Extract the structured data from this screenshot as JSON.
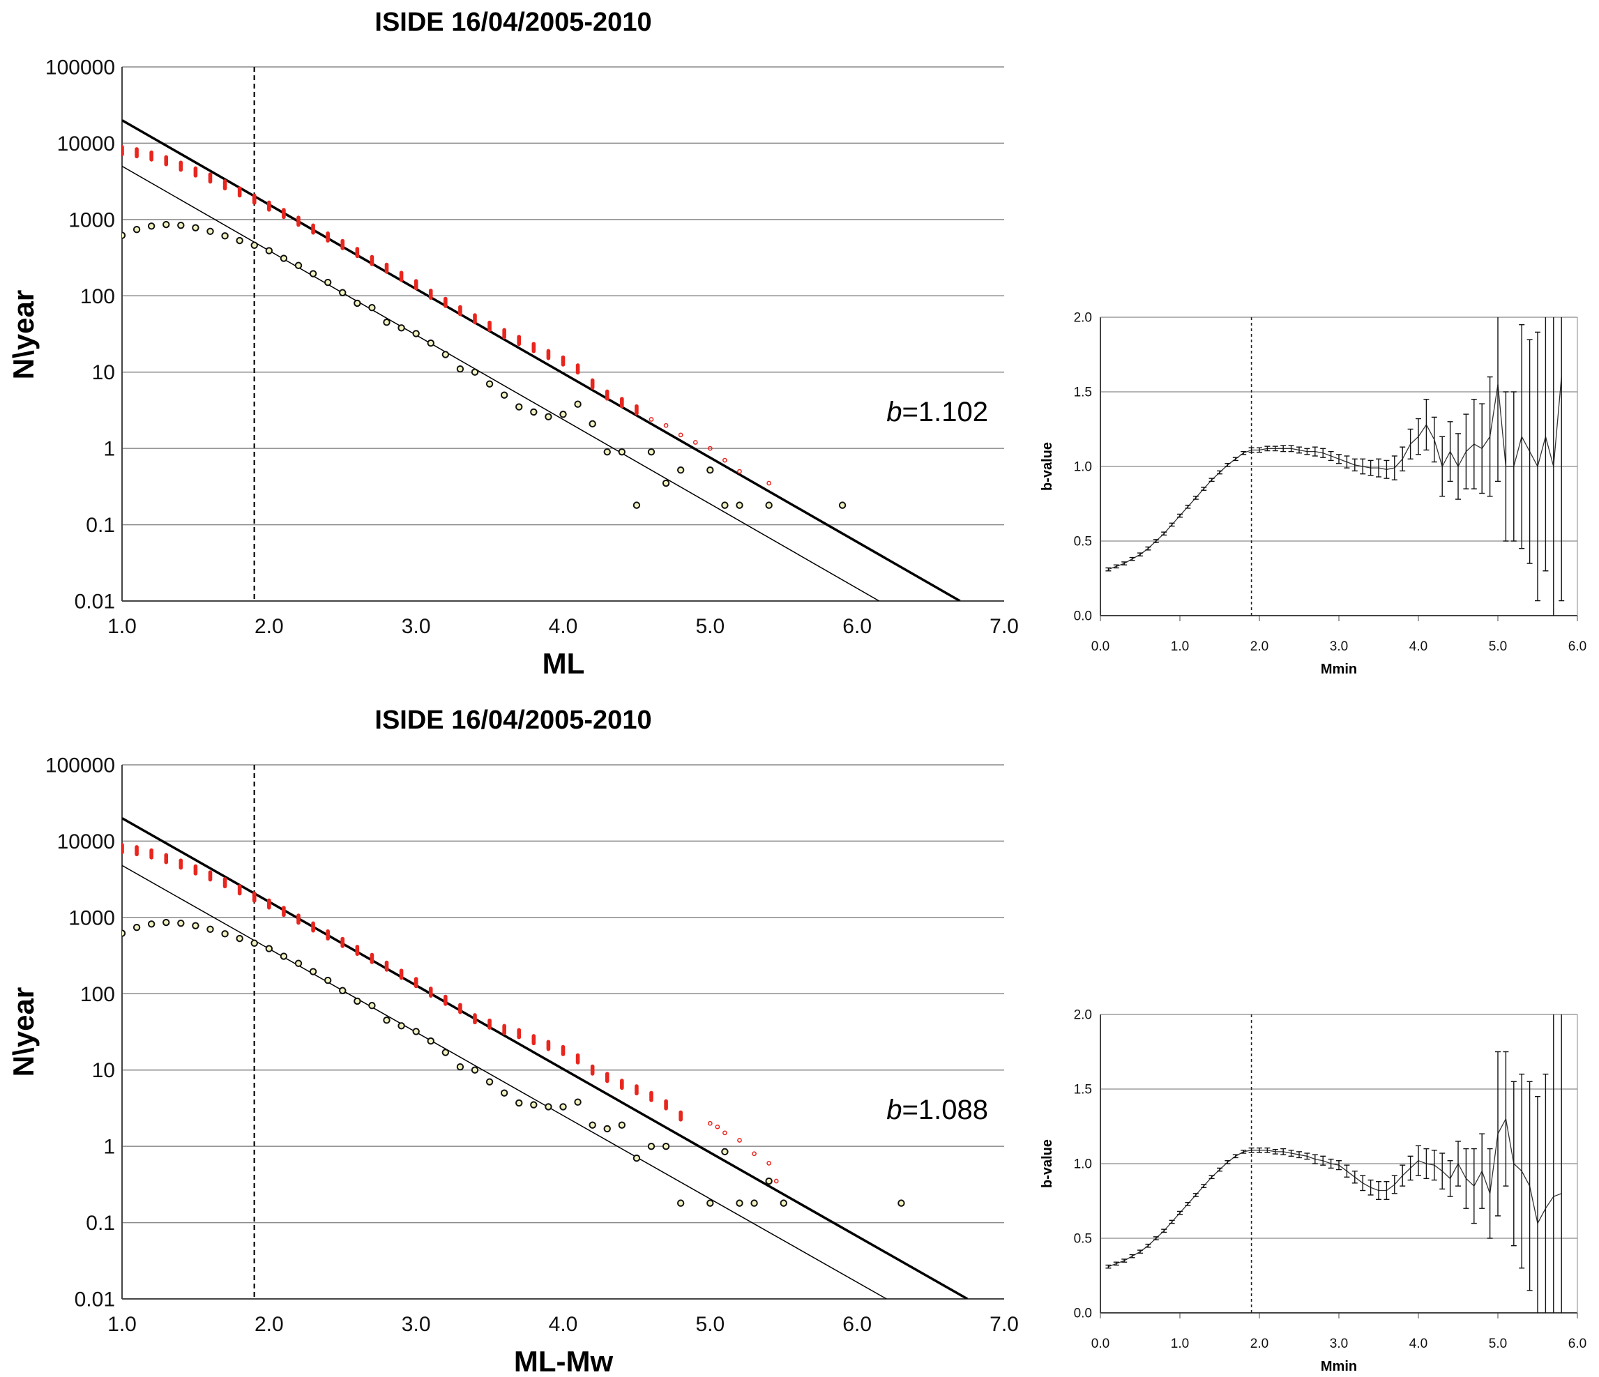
{
  "chart_data": [
    {
      "type": "scatter",
      "title": "ISIDE 16/04/2005-2010",
      "xlabel": "ML",
      "ylabel": "N\\year",
      "xlim": [
        1.0,
        7.0
      ],
      "ylim": [
        0.01,
        100000
      ],
      "yscale": "log",
      "grid": "horizontal",
      "x_ticks": [
        "1.0",
        "2.0",
        "3.0",
        "4.0",
        "5.0",
        "6.0",
        "7.0"
      ],
      "y_ticks": [
        "0.01",
        "0.1",
        "1",
        "10",
        "100",
        "1000",
        "10000",
        "100000"
      ],
      "mc_line_x": 1.9,
      "annotation": {
        "italic": "b",
        "text": "=1.102"
      },
      "series": [
        {
          "kind": "fit-line-cumulative",
          "x": [
            1.0,
            6.7
          ],
          "y": [
            20000,
            0.01
          ]
        },
        {
          "kind": "fit-line-incremental",
          "x": [
            1.0,
            6.15
          ],
          "y": [
            5000,
            0.01
          ]
        },
        {
          "kind": "cumulative-points",
          "color": "#e8261e",
          "x": [
            1.0,
            1.1,
            1.2,
            1.3,
            1.4,
            1.5,
            1.6,
            1.7,
            1.8,
            1.9,
            2.0,
            2.1,
            2.2,
            2.3,
            2.4,
            2.5,
            2.6,
            2.7,
            2.8,
            2.9,
            3.0,
            3.1,
            3.2,
            3.3,
            3.4,
            3.5,
            3.6,
            3.7,
            3.8,
            3.9,
            4.0,
            4.1,
            4.2,
            4.3,
            4.4,
            4.5,
            4.6,
            4.7,
            4.8,
            4.9,
            5.0,
            5.1,
            5.2,
            5.4
          ],
          "y": [
            8000,
            7500,
            6800,
            5900,
            5000,
            4200,
            3500,
            2850,
            2300,
            1850,
            1500,
            1200,
            950,
            750,
            590,
            470,
            370,
            290,
            230,
            180,
            140,
            105,
            82,
            64,
            50,
            40,
            32,
            26,
            21,
            17,
            14,
            11,
            7,
            5,
            4,
            3.2,
            2.4,
            2.0,
            1.5,
            1.2,
            1.0,
            0.7,
            0.5,
            0.35
          ]
        },
        {
          "kind": "incremental-points",
          "color": "#f3f3c0",
          "x": [
            1.0,
            1.1,
            1.2,
            1.3,
            1.4,
            1.5,
            1.6,
            1.7,
            1.8,
            1.9,
            2.0,
            2.1,
            2.2,
            2.3,
            2.4,
            2.5,
            2.6,
            2.7,
            2.8,
            2.9,
            3.0,
            3.1,
            3.2,
            3.3,
            3.4,
            3.5,
            3.6,
            3.7,
            3.8,
            3.9,
            4.0,
            4.1,
            4.2,
            4.3,
            4.4,
            4.5,
            4.6,
            4.7,
            4.8,
            5.0,
            5.1,
            5.2,
            5.4,
            5.9
          ],
          "y": [
            620,
            740,
            820,
            860,
            840,
            780,
            700,
            610,
            530,
            460,
            390,
            310,
            250,
            195,
            150,
            110,
            80,
            70,
            45,
            38,
            32,
            24,
            17,
            11,
            10,
            7,
            5,
            3.5,
            3,
            2.6,
            2.8,
            3.8,
            2.1,
            0.9,
            0.9,
            0.18,
            0.9,
            0.35,
            0.52,
            0.52,
            0.18,
            0.18,
            0.18,
            0.18
          ]
        }
      ]
    },
    {
      "type": "line",
      "title": "",
      "xlabel": "Mmin",
      "ylabel": "b-value",
      "xlim": [
        0.0,
        6.0
      ],
      "ylim": [
        0.0,
        2.0
      ],
      "grid": "horizontal",
      "x_ticks": [
        "0.0",
        "1.0",
        "2.0",
        "3.0",
        "4.0",
        "5.0",
        "6.0"
      ],
      "y_ticks": [
        "0.0",
        "0.5",
        "1.0",
        "1.5",
        "2.0"
      ],
      "mc_line_x": 1.9,
      "series": [
        {
          "kind": "b-value-with-error",
          "x": [
            0.1,
            0.2,
            0.3,
            0.4,
            0.5,
            0.6,
            0.7,
            0.8,
            0.9,
            1.0,
            1.1,
            1.2,
            1.3,
            1.4,
            1.5,
            1.6,
            1.7,
            1.8,
            1.9,
            2.0,
            2.1,
            2.2,
            2.3,
            2.4,
            2.5,
            2.6,
            2.7,
            2.8,
            2.9,
            3.0,
            3.1,
            3.2,
            3.3,
            3.4,
            3.5,
            3.6,
            3.7,
            3.8,
            3.9,
            4.0,
            4.1,
            4.2,
            4.3,
            4.4,
            4.5,
            4.6,
            4.7,
            4.8,
            4.9,
            5.0,
            5.1,
            5.2,
            5.3,
            5.4,
            5.5,
            5.6,
            5.7,
            5.8
          ],
          "y": [
            0.31,
            0.33,
            0.35,
            0.38,
            0.41,
            0.45,
            0.5,
            0.55,
            0.61,
            0.67,
            0.73,
            0.79,
            0.85,
            0.91,
            0.96,
            1.01,
            1.05,
            1.09,
            1.11,
            1.11,
            1.12,
            1.12,
            1.12,
            1.12,
            1.11,
            1.1,
            1.1,
            1.09,
            1.07,
            1.05,
            1.03,
            1.01,
            1.0,
            0.99,
            0.99,
            0.98,
            0.99,
            1.05,
            1.15,
            1.2,
            1.28,
            1.18,
            1.0,
            1.1,
            1.0,
            1.1,
            1.15,
            1.12,
            1.2,
            1.55,
            1.0,
            1.0,
            1.2,
            1.1,
            1.0,
            1.2,
            1.0,
            1.6
          ],
          "err": [
            0.01,
            0.01,
            0.01,
            0.01,
            0.01,
            0.01,
            0.01,
            0.01,
            0.01,
            0.01,
            0.01,
            0.01,
            0.01,
            0.01,
            0.01,
            0.01,
            0.01,
            0.01,
            0.015,
            0.015,
            0.015,
            0.015,
            0.02,
            0.02,
            0.02,
            0.02,
            0.03,
            0.03,
            0.03,
            0.03,
            0.04,
            0.04,
            0.05,
            0.05,
            0.06,
            0.06,
            0.08,
            0.08,
            0.1,
            0.12,
            0.17,
            0.15,
            0.2,
            0.2,
            0.22,
            0.25,
            0.3,
            0.3,
            0.4,
            0.65,
            0.5,
            0.5,
            0.75,
            0.75,
            0.9,
            0.9,
            1.5,
            1.5
          ]
        }
      ]
    },
    {
      "type": "scatter",
      "title": "ISIDE 16/04/2005-2010",
      "xlabel": "ML-Mw",
      "ylabel": "N\\year",
      "xlim": [
        1.0,
        7.0
      ],
      "ylim": [
        0.01,
        100000
      ],
      "yscale": "log",
      "grid": "horizontal",
      "x_ticks": [
        "1.0",
        "2.0",
        "3.0",
        "4.0",
        "5.0",
        "6.0",
        "7.0"
      ],
      "y_ticks": [
        "0.01",
        "0.1",
        "1",
        "10",
        "100",
        "1000",
        "10000",
        "100000"
      ],
      "mc_line_x": 1.9,
      "annotation": {
        "italic": "b",
        "text": "=1.088"
      },
      "series": [
        {
          "kind": "fit-line-cumulative",
          "x": [
            1.0,
            6.75
          ],
          "y": [
            20000,
            0.01
          ]
        },
        {
          "kind": "fit-line-incremental",
          "x": [
            1.0,
            6.2
          ],
          "y": [
            4800,
            0.01
          ]
        },
        {
          "kind": "cumulative-points",
          "color": "#e8261e",
          "x": [
            1.0,
            1.1,
            1.2,
            1.3,
            1.4,
            1.5,
            1.6,
            1.7,
            1.8,
            1.9,
            2.0,
            2.1,
            2.2,
            2.3,
            2.4,
            2.5,
            2.6,
            2.7,
            2.8,
            2.9,
            3.0,
            3.1,
            3.2,
            3.3,
            3.4,
            3.5,
            3.6,
            3.7,
            3.8,
            3.9,
            4.0,
            4.1,
            4.2,
            4.3,
            4.4,
            4.5,
            4.6,
            4.7,
            4.8,
            5.0,
            5.05,
            5.1,
            5.2,
            5.3,
            5.4,
            5.45
          ],
          "y": [
            8000,
            7500,
            6800,
            5900,
            5000,
            4200,
            3500,
            2850,
            2300,
            1850,
            1500,
            1200,
            950,
            750,
            590,
            470,
            370,
            290,
            230,
            180,
            140,
            105,
            82,
            64,
            47,
            40,
            34,
            30,
            25,
            21,
            18,
            14,
            10,
            8,
            6.5,
            5.5,
            4.5,
            3.5,
            2.5,
            2.0,
            1.8,
            1.5,
            1.2,
            0.8,
            0.6,
            0.35
          ]
        },
        {
          "kind": "incremental-points",
          "color": "#f3f3c0",
          "x": [
            1.0,
            1.1,
            1.2,
            1.3,
            1.4,
            1.5,
            1.6,
            1.7,
            1.8,
            1.9,
            2.0,
            2.1,
            2.2,
            2.3,
            2.4,
            2.5,
            2.6,
            2.7,
            2.8,
            2.9,
            3.0,
            3.1,
            3.2,
            3.3,
            3.4,
            3.5,
            3.6,
            3.7,
            3.8,
            3.9,
            4.0,
            4.1,
            4.2,
            4.3,
            4.4,
            4.5,
            4.6,
            4.7,
            4.8,
            5.0,
            5.1,
            5.2,
            5.3,
            5.4,
            5.5,
            6.3
          ],
          "y": [
            620,
            740,
            820,
            860,
            840,
            780,
            700,
            610,
            530,
            460,
            390,
            310,
            250,
            195,
            150,
            110,
            80,
            70,
            45,
            38,
            32,
            24,
            17,
            11,
            10,
            7,
            5,
            3.7,
            3.5,
            3.3,
            3.3,
            3.8,
            1.9,
            1.7,
            1.9,
            0.7,
            1.0,
            1.0,
            0.18,
            0.18,
            0.85,
            0.18,
            0.18,
            0.35,
            0.18,
            0.18
          ]
        }
      ]
    },
    {
      "type": "line",
      "title": "",
      "xlabel": "Mmin",
      "ylabel": "b-value",
      "xlim": [
        0.0,
        6.0
      ],
      "ylim": [
        0.0,
        2.0
      ],
      "grid": "horizontal",
      "x_ticks": [
        "0.0",
        "1.0",
        "2.0",
        "3.0",
        "4.0",
        "5.0",
        "6.0"
      ],
      "y_ticks": [
        "0.0",
        "0.5",
        "1.0",
        "1.5",
        "2.0"
      ],
      "mc_line_x": 1.9,
      "series": [
        {
          "kind": "b-value-with-error",
          "x": [
            0.1,
            0.2,
            0.3,
            0.4,
            0.5,
            0.6,
            0.7,
            0.8,
            0.9,
            1.0,
            1.1,
            1.2,
            1.3,
            1.4,
            1.5,
            1.6,
            1.7,
            1.8,
            1.9,
            2.0,
            2.1,
            2.2,
            2.3,
            2.4,
            2.5,
            2.6,
            2.7,
            2.8,
            2.9,
            3.0,
            3.1,
            3.2,
            3.3,
            3.4,
            3.5,
            3.6,
            3.7,
            3.8,
            3.9,
            4.0,
            4.1,
            4.2,
            4.3,
            4.4,
            4.5,
            4.6,
            4.7,
            4.8,
            4.9,
            5.0,
            5.1,
            5.2,
            5.3,
            5.4,
            5.5,
            5.6,
            5.7,
            5.8
          ],
          "y": [
            0.31,
            0.33,
            0.35,
            0.38,
            0.41,
            0.45,
            0.5,
            0.55,
            0.61,
            0.67,
            0.73,
            0.79,
            0.85,
            0.91,
            0.96,
            1.01,
            1.05,
            1.08,
            1.09,
            1.09,
            1.09,
            1.08,
            1.08,
            1.07,
            1.06,
            1.05,
            1.03,
            1.02,
            1.0,
            0.99,
            0.95,
            0.91,
            0.87,
            0.84,
            0.82,
            0.82,
            0.86,
            0.92,
            0.97,
            1.02,
            1.0,
            0.99,
            0.95,
            0.9,
            1.0,
            0.9,
            0.85,
            0.95,
            0.8,
            1.2,
            1.3,
            1.0,
            0.95,
            0.85,
            0.6,
            0.7,
            0.78,
            0.8
          ],
          "err": [
            0.01,
            0.01,
            0.01,
            0.01,
            0.01,
            0.01,
            0.01,
            0.01,
            0.01,
            0.01,
            0.01,
            0.01,
            0.01,
            0.01,
            0.01,
            0.01,
            0.01,
            0.01,
            0.015,
            0.015,
            0.015,
            0.015,
            0.02,
            0.02,
            0.02,
            0.02,
            0.03,
            0.03,
            0.03,
            0.03,
            0.04,
            0.04,
            0.05,
            0.05,
            0.06,
            0.06,
            0.06,
            0.07,
            0.08,
            0.1,
            0.1,
            0.1,
            0.12,
            0.12,
            0.15,
            0.2,
            0.25,
            0.25,
            0.3,
            0.55,
            0.45,
            0.55,
            0.65,
            0.7,
            0.85,
            0.9,
            1.5,
            1.5
          ]
        }
      ]
    }
  ]
}
